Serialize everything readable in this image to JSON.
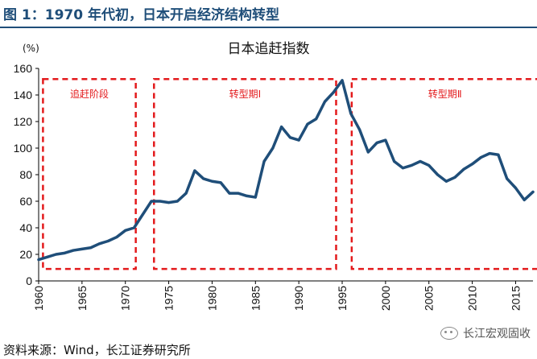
{
  "figure_title": "图 1：1970 年代初，日本开启经济结构转型",
  "source": "资料来源：Wind，长江证券研究所",
  "watermark": "长江宏观固收",
  "watermark_icon": "wechat-icon",
  "colors": {
    "title": "#1f4e79",
    "line": "#1f4e79",
    "box": "#e31a1c",
    "annotation": "#e31a1c"
  },
  "chart_data": {
    "type": "line",
    "title": "日本追赶指数",
    "ylabel": "(%)",
    "xlim": [
      1960,
      2017
    ],
    "ylim": [
      0,
      160
    ],
    "x_ticks": [
      1960,
      1965,
      1970,
      1975,
      1980,
      1985,
      1990,
      1995,
      2000,
      2005,
      2010,
      2015
    ],
    "y_ticks": [
      0,
      20,
      40,
      60,
      80,
      100,
      120,
      140,
      160
    ],
    "grid": false,
    "legend": "none",
    "series": [
      {
        "x": [
          1960,
          1961,
          1962,
          1963,
          1964,
          1965,
          1966,
          1967,
          1968,
          1969,
          1970,
          1971,
          1972,
          1973,
          1974,
          1975,
          1976,
          1977,
          1978,
          1979,
          1980,
          1981,
          1982,
          1983,
          1984,
          1985,
          1986,
          1987,
          1988,
          1989,
          1990,
          1991,
          1992,
          1993,
          1994,
          1995,
          1996,
          1997,
          1998,
          1999,
          2000,
          2001,
          2002,
          2003,
          2004,
          2005,
          2006,
          2007,
          2008,
          2009,
          2010,
          2011,
          2012,
          2013,
          2014,
          2015,
          2016,
          2017
        ],
        "values": [
          16,
          18,
          20,
          21,
          23,
          24,
          25,
          28,
          30,
          33,
          38,
          40,
          50,
          60,
          60,
          59,
          60,
          66,
          83,
          77,
          75,
          74,
          66,
          66,
          64,
          63,
          90,
          100,
          116,
          108,
          106,
          118,
          122,
          135,
          142,
          151,
          126,
          114,
          97,
          104,
          106,
          90,
          85,
          87,
          90,
          87,
          80,
          75,
          78,
          84,
          88,
          93,
          96,
          95,
          77,
          70,
          61,
          67
        ]
      }
    ],
    "annotations": [
      {
        "label": "追赶阶段",
        "x_range": [
          1960.5,
          1971.2
        ],
        "y_range": [
          9,
          152
        ]
      },
      {
        "label": "转型期Ⅰ",
        "x_range": [
          1973.3,
          1994.3
        ],
        "y_range": [
          9,
          152
        ]
      },
      {
        "label": "转型期Ⅱ",
        "x_range": [
          1996.1,
          2017.6
        ],
        "y_range": [
          9,
          152
        ]
      }
    ]
  }
}
